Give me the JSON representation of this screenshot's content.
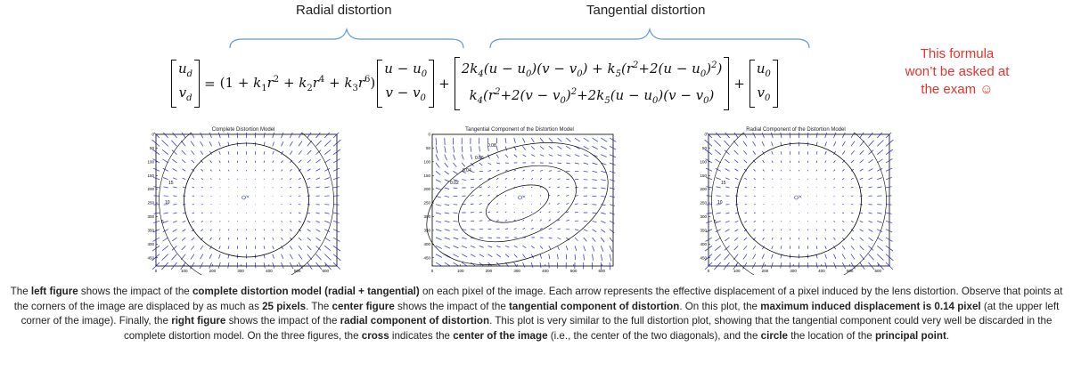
{
  "headers": {
    "radial": "Radial distortion",
    "tangential": "Tangential distortion"
  },
  "note": {
    "line1": "This formula",
    "line2": "won’t be asked at",
    "line3": "the exam ☺",
    "color": "#e8322b"
  },
  "formula": {
    "lhs_top": "u_d",
    "lhs_bottom": "v_d",
    "radial_term": "(1 + k1 r^2 + k2 r^4 + k3 r^6)",
    "vec_top": "u − u0",
    "vec_bottom": "v − v0",
    "tan_top": "2k4(u − u0)(v − v0) + k5(r^2+2(u − u0)^2)",
    "tan_bottom": "k4(r^2+2(v − v0)^2+2k5(u − u0)(v − v0)",
    "c_top": "u0",
    "c_bottom": "v0"
  },
  "plots": [
    {
      "title": "Complete Distortion Model",
      "kind": "complete",
      "contour_labels": [
        "5",
        "10",
        "15"
      ]
    },
    {
      "title": "Tangential Component of the Distortion Model",
      "kind": "tangential",
      "contour_labels": [
        "0.02",
        "0.04",
        "0.06",
        "0.08"
      ]
    },
    {
      "title": "Radial Component of the Distortion Model",
      "kind": "radial",
      "contour_labels": [
        "5",
        "10",
        "15"
      ]
    }
  ],
  "axis": {
    "x_ticks": [
      "0",
      "100",
      "200",
      "300",
      "400",
      "500",
      "600"
    ],
    "y_ticks": [
      "0",
      "50",
      "100",
      "150",
      "200",
      "250",
      "300",
      "350",
      "400",
      "450"
    ]
  },
  "caption": [
    {
      "t": "The ",
      "b": false
    },
    {
      "t": "left figure",
      "b": true
    },
    {
      "t": " shows the impact of the ",
      "b": false
    },
    {
      "t": "complete distortion model (radial + tangential)",
      "b": true
    },
    {
      "t": " on each pixel of the image. Each arrow represents the effective displacement of a pixel induced by the lens distortion. Observe that points at the corners of the image are displaced by as much as ",
      "b": false
    },
    {
      "t": "25 pixels",
      "b": true
    },
    {
      "t": ". The ",
      "b": false
    },
    {
      "t": "center figure",
      "b": true
    },
    {
      "t": " shows the impact of the ",
      "b": false
    },
    {
      "t": "tangential component of distortion",
      "b": true
    },
    {
      "t": ". On this plot, the ",
      "b": false
    },
    {
      "t": "maximum induced displacement is 0.14 pixel",
      "b": true
    },
    {
      "t": " (at the upper left corner of the image). Finally, the ",
      "b": false
    },
    {
      "t": "right figure",
      "b": true
    },
    {
      "t": " shows the impact of the ",
      "b": false
    },
    {
      "t": "radial component of distortion",
      "b": true
    },
    {
      "t": ". This plot is very similar to the full distortion plot, showing that the tangential component could very well be discarded in the complete distortion model. On the three figures, the ",
      "b": false
    },
    {
      "t": "cross",
      "b": true
    },
    {
      "t": " indicates the ",
      "b": false
    },
    {
      "t": "center of the image",
      "b": true
    },
    {
      "t": " (i.e., the center of the two diagonals), and the ",
      "b": false
    },
    {
      "t": "circle",
      "b": true
    },
    {
      "t": " the location of the ",
      "b": false
    },
    {
      "t": "principal point",
      "b": true
    },
    {
      "t": ".",
      "b": false
    }
  ]
}
